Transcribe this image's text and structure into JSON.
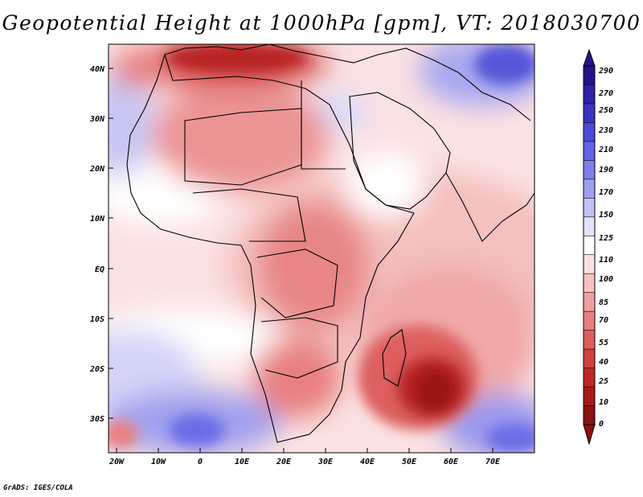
{
  "title": "Geopotential Height at 1000hPa [gpm], VT: 2018030700",
  "footer": "GrADS: IGES/COLA",
  "map": {
    "variable": "Geopotential Height",
    "level": "1000hPa",
    "units": "gpm",
    "valid_time": "2018030700",
    "lat_labels": [
      "40N",
      "30N",
      "20N",
      "10N",
      "EQ",
      "10S",
      "20S",
      "30S"
    ],
    "lon_labels": [
      "20W",
      "10W",
      "0",
      "10E",
      "20E",
      "30E",
      "40E",
      "50E",
      "60E",
      "70E"
    ]
  },
  "colorbar": {
    "levels": [
      "290",
      "270",
      "250",
      "230",
      "210",
      "190",
      "170",
      "150",
      "125",
      "110",
      "100",
      "85",
      "70",
      "55",
      "40",
      "25",
      "10",
      "0"
    ],
    "colors": [
      "#24148c",
      "#2e22a8",
      "#3a34c4",
      "#4a4ad8",
      "#6262e4",
      "#7e7eec",
      "#9e9ef2",
      "#c0c0f6",
      "#e2e2fa",
      "#ffffff",
      "#fbe2e2",
      "#f6c2c2",
      "#f0a0a0",
      "#e88080",
      "#de5e5e",
      "#d04040",
      "#c02828",
      "#a81a1a",
      "#8a1212"
    ]
  }
}
